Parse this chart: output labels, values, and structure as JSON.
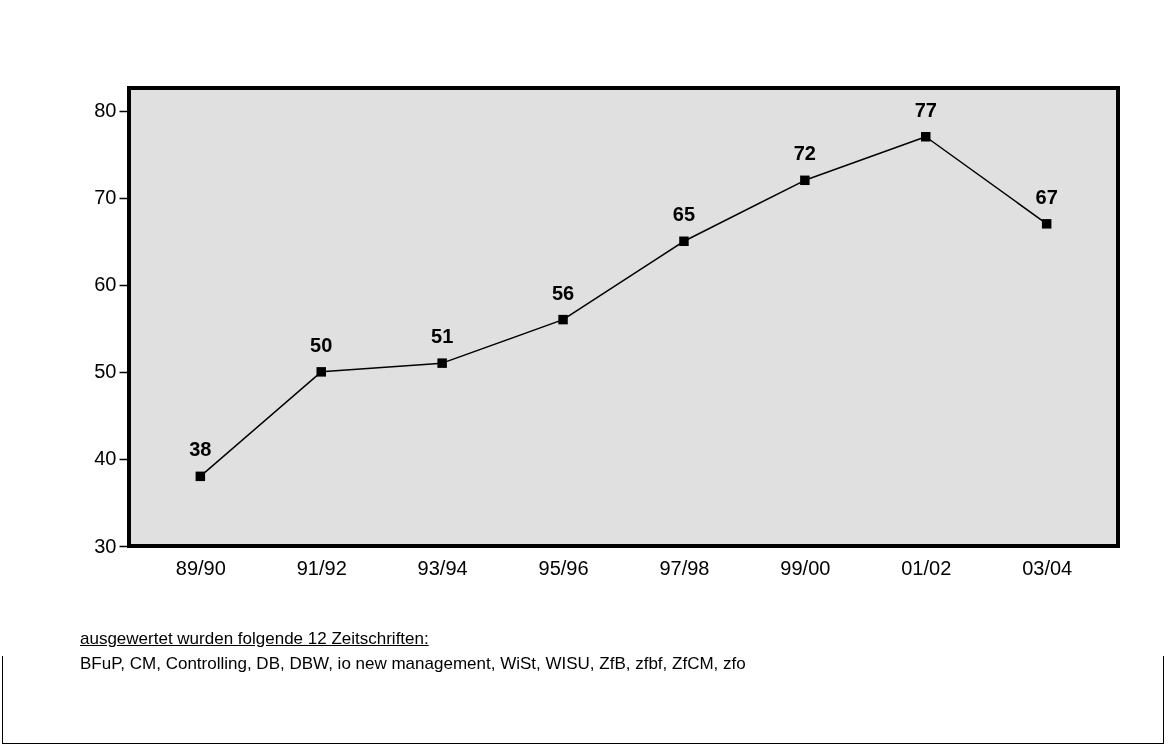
{
  "chart_data": {
    "type": "line",
    "categories": [
      "89/90",
      "91/92",
      "93/94",
      "95/96",
      "97/98",
      "99/00",
      "01/02",
      "03/04"
    ],
    "series": [
      {
        "color": "#000000",
        "values": [
          38,
          50,
          51,
          56,
          65,
          72,
          77,
          67
        ]
      }
    ],
    "ylim": [
      30,
      82.6
    ],
    "yticks": [
      30,
      40,
      50,
      60,
      70,
      80
    ],
    "grid": false,
    "legend": false,
    "marker": "square",
    "line_style": "solid",
    "data_labels": true,
    "annotations": [
      "ausgewertet wurden folgende 12 Zeitschriften:",
      "BFuP, CM, Controlling, DB, DBW, io new management, WiSt, WISU, ZfB, zfbf, ZfCM, zfo"
    ]
  }
}
